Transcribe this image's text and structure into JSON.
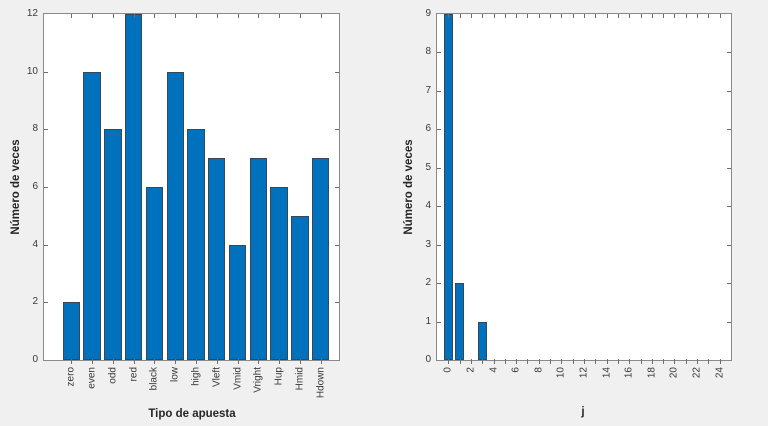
{
  "colors": {
    "figure_background": "#f0f0f0",
    "plot_background": "#ffffff",
    "axis_color": "#8a8a8a",
    "tick_color": "#6e6e6e",
    "tick_label_color": "#3a3a3a",
    "axis_label_color": "#262626",
    "bar_fill": "#0072BD",
    "bar_edge": "#3a4654"
  },
  "chart_data": [
    {
      "type": "bar",
      "title": "",
      "xlabel": "Tipo de apuesta",
      "ylabel": "Número de veces",
      "categories": [
        "zero",
        "even",
        "odd",
        "red",
        "black",
        "low",
        "high",
        "Vleft",
        "Vmid",
        "Vright",
        "Hup",
        "Hmid",
        "Hdown"
      ],
      "values": [
        2,
        10,
        8,
        12,
        6,
        10,
        8,
        7,
        4,
        7,
        6,
        5,
        7
      ],
      "ylim": [
        0,
        12
      ],
      "yticks": [
        0,
        2,
        4,
        6,
        8,
        10,
        12
      ],
      "xtick_angle": 90,
      "grid": false,
      "legend": null
    },
    {
      "type": "bar",
      "title": "",
      "xlabel": "j",
      "ylabel": "Número de veces",
      "x": [
        0,
        1,
        3
      ],
      "values": [
        9,
        2,
        1
      ],
      "xlim": [
        -1,
        25
      ],
      "ylim": [
        0,
        9
      ],
      "yticks": [
        0,
        1,
        2,
        3,
        4,
        5,
        6,
        7,
        8,
        9
      ],
      "xtick_labels": [
        0,
        2,
        4,
        6,
        8,
        10,
        12,
        14,
        16,
        18,
        20,
        22,
        24
      ],
      "xtick_minor_step": 1,
      "xtick_angle": 90,
      "grid": false,
      "legend": null
    }
  ]
}
